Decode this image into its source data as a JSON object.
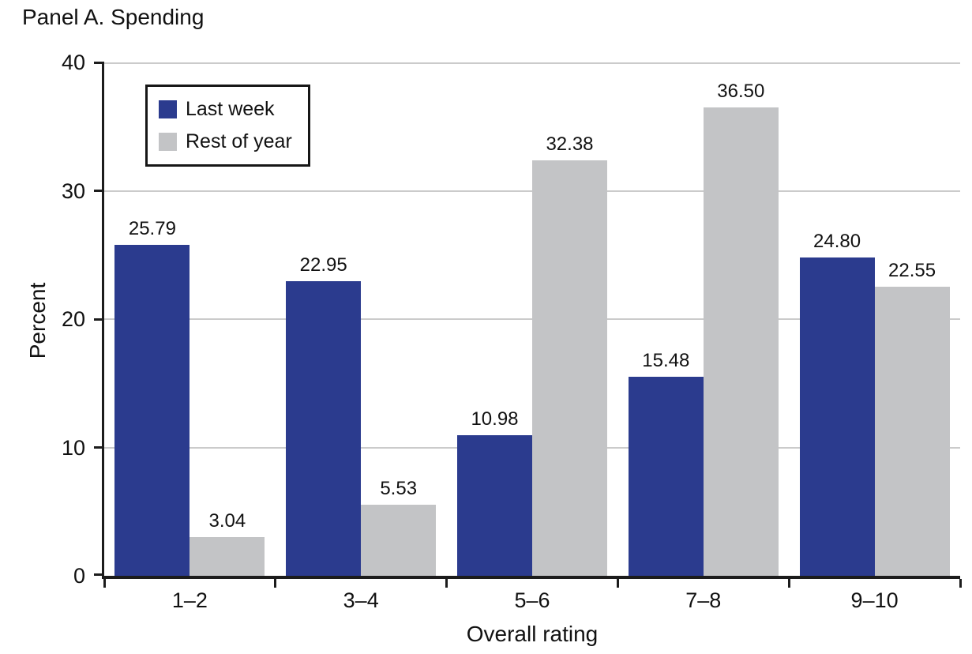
{
  "title": "Panel A. Spending",
  "chart_data": {
    "type": "bar",
    "categories": [
      "1–2",
      "3–4",
      "5–6",
      "7–8",
      "9–10"
    ],
    "series": [
      {
        "name": "Last week",
        "color": "#2b3b8e",
        "values": [
          25.79,
          22.95,
          10.98,
          15.48,
          24.8
        ]
      },
      {
        "name": "Rest of year",
        "color": "#c3c4c6",
        "values": [
          3.04,
          5.53,
          32.38,
          36.5,
          22.55
        ]
      }
    ],
    "title": "Panel A. Spending",
    "xlabel": "Overall rating",
    "ylabel": "Percent",
    "ylim": [
      0,
      40
    ],
    "yticks": [
      0,
      10,
      20,
      30,
      40
    ],
    "grid": true,
    "legend_position": "top-left",
    "value_labels": true,
    "value_label_decimals": 2
  },
  "colors": {
    "bar_last_week": "#2b3b8e",
    "bar_rest_of_year": "#c3c4c6",
    "gridline": "#cbcbcb",
    "axis": "#1c1c1c",
    "text": "#111111"
  }
}
